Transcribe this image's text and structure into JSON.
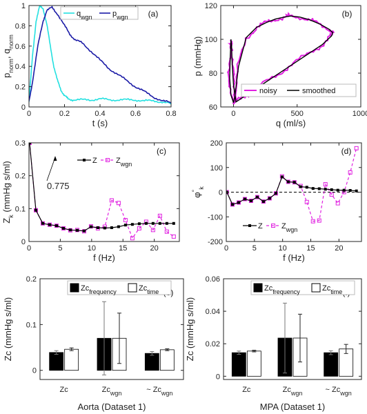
{
  "figure": {
    "a": {
      "label": "(a)",
      "ylabel": {
        "main1": "p",
        "sub1": "norm",
        "sep": ", q",
        "sub2": "norm"
      },
      "xlabel": "t (s)",
      "xticks": [
        "0",
        "0.2",
        "0.4",
        "0.6",
        "0.8"
      ],
      "yticks": [
        "0",
        "0.2",
        "0.4",
        "0.6",
        "0.8",
        "1"
      ],
      "legend": [
        {
          "main": "q",
          "sub": "wgn"
        },
        {
          "main": "p",
          "sub": "wgn"
        }
      ]
    },
    "b": {
      "label": "(b)",
      "ylabel": "p (mmHg)",
      "xlabel": "q (ml/s)",
      "xticks": [
        "0",
        "500",
        "1000"
      ],
      "yticks": [
        "60",
        "80",
        "100",
        "120"
      ],
      "legend": [
        "noisy",
        "smoothed"
      ]
    },
    "c": {
      "label": "(c)",
      "ylabel": {
        "main": "Z",
        "sub": "k",
        "rest": " (mmHg s/ml)"
      },
      "xlabel": "f (Hz)",
      "xticks": [
        "0",
        "5",
        "10",
        "15",
        "20"
      ],
      "yticks": [
        "0",
        "0.1",
        "0.2",
        "0.3"
      ],
      "legend": [
        {
          "main": "Z",
          "sub": ""
        },
        {
          "main": "Z",
          "sub": "wgn"
        }
      ],
      "annotation": "0.775"
    },
    "d": {
      "label": "(d)",
      "ylabel": {
        "main": "φ",
        "sub": "k",
        "sup": "°"
      },
      "xlabel": "f (Hz)",
      "xticks": [
        "0",
        "5",
        "10",
        "15",
        "20"
      ],
      "yticks": [
        "-200",
        "-100",
        "0",
        "100",
        "200"
      ],
      "legend": [
        {
          "main": "Z",
          "sub": ""
        },
        {
          "main": "Z",
          "sub": "wgn"
        }
      ]
    },
    "e": {
      "label": "(e)",
      "ylabel": "Zc (mmHg s/ml)",
      "xlabel": "Aorta (Dataset 1)",
      "yticks": [
        "0",
        "0.1",
        "0.2"
      ],
      "categories": [
        {
          "pre": "",
          "main": "Zc",
          "sub": ""
        },
        {
          "pre": "",
          "main": "Zc",
          "sub": "wgn"
        },
        {
          "pre": "~ ",
          "main": "Zc",
          "sub": "wgn"
        }
      ],
      "legend": [
        {
          "main": "Zc",
          "sub": "frequency"
        },
        {
          "main": "Zc",
          "sub": "time"
        }
      ]
    },
    "f": {
      "label": "(f)",
      "ylabel": "Zc (mmHg s/ml)",
      "xlabel": "MPA (Dataset 1)",
      "yticks": [
        "0",
        "0.02",
        "0.04",
        "0.06"
      ],
      "categories": [
        {
          "pre": "",
          "main": "Zc",
          "sub": ""
        },
        {
          "pre": "",
          "main": "Zc",
          "sub": "wgn"
        },
        {
          "pre": "~ ",
          "main": "Zc",
          "sub": "wgn"
        }
      ],
      "legend": [
        {
          "main": "Zc",
          "sub": "frequency"
        },
        {
          "main": "Zc",
          "sub": "time"
        }
      ]
    }
  },
  "chart_data": [
    {
      "panel": "a",
      "type": "line",
      "xlim": [
        0,
        0.8
      ],
      "ylim": [
        0,
        1
      ],
      "colors": [
        "#22e0e0",
        "#1a1aa6"
      ],
      "series": [
        {
          "name": "q_wgn",
          "x": [
            0,
            0.02,
            0.04,
            0.06,
            0.08,
            0.1,
            0.12,
            0.14,
            0.16,
            0.18,
            0.2,
            0.22,
            0.25,
            0.3,
            0.35,
            0.4,
            0.45,
            0.5,
            0.55,
            0.6,
            0.65,
            0.7,
            0.75,
            0.8
          ],
          "y": [
            0.05,
            0.5,
            0.85,
            0.99,
            0.97,
            0.82,
            0.6,
            0.4,
            0.26,
            0.17,
            0.11,
            0.08,
            0.07,
            0.07,
            0.07,
            0.08,
            0.07,
            0.07,
            0.07,
            0.07,
            0.06,
            0.06,
            0.05,
            0.03
          ]
        },
        {
          "name": "p_wgn",
          "x": [
            0,
            0.02,
            0.05,
            0.08,
            0.1,
            0.13,
            0.16,
            0.2,
            0.23,
            0.26,
            0.3,
            0.35,
            0.4,
            0.45,
            0.5,
            0.55,
            0.6,
            0.65,
            0.7,
            0.75,
            0.8
          ],
          "y": [
            0.05,
            0.25,
            0.6,
            0.85,
            0.95,
            0.98,
            0.92,
            0.8,
            0.72,
            0.66,
            0.63,
            0.55,
            0.46,
            0.38,
            0.32,
            0.26,
            0.2,
            0.15,
            0.1,
            0.06,
            0.04
          ]
        }
      ]
    },
    {
      "panel": "b",
      "type": "line",
      "xlim": [
        -100,
        1000
      ],
      "ylim": [
        60,
        120
      ],
      "colors": [
        "#e020e0",
        "#000000"
      ],
      "series": [
        {
          "name": "smoothed",
          "x": [
            0,
            10,
            40,
            100,
            180,
            260,
            330,
            400,
            450,
            520,
            600,
            680,
            750,
            780,
            770,
            700,
            600,
            500,
            400,
            300,
            200,
            120,
            60,
            20,
            0,
            -10,
            -15,
            -20,
            -25,
            -30,
            -20,
            0
          ],
          "y": [
            62.5,
            66,
            84,
            101,
            107,
            110,
            112,
            113.2,
            113.8,
            113.2,
            111.5,
            109,
            106,
            104,
            102,
            97,
            92,
            87,
            82,
            77,
            72,
            68,
            65,
            63,
            73,
            85,
            96,
            100,
            90,
            77,
            67,
            62.5
          ]
        }
      ]
    },
    {
      "panel": "c",
      "type": "line",
      "xlim": [
        0,
        24
      ],
      "ylim": [
        0,
        0.3
      ],
      "colors": [
        "#000000",
        "#e020e0"
      ],
      "series": [
        {
          "name": "Z",
          "x": [
            0.1,
            1.1,
            2.2,
            3.3,
            4.4,
            5.5,
            6.6,
            7.7,
            8.8,
            9.9,
            11,
            12.1,
            13.2,
            14.3,
            15.4,
            16.5,
            17.6,
            18.7,
            19.8,
            20.9,
            22,
            23.1
          ],
          "y": [
            0.3,
            0.095,
            0.055,
            0.051,
            0.048,
            0.04,
            0.035,
            0.034,
            0.032,
            0.045,
            0.042,
            0.041,
            0.042,
            0.045,
            0.05,
            0.052,
            0.054,
            0.055,
            0.055,
            0.055,
            0.055,
            0.055
          ]
        },
        {
          "name": "Z_wgn",
          "x": [
            0.1,
            1.1,
            2.2,
            3.3,
            4.4,
            5.5,
            6.6,
            7.7,
            8.8,
            9.9,
            11,
            12.1,
            13.2,
            14.3,
            15.4,
            16.5,
            17.6,
            18.7,
            19.8,
            20.9,
            22,
            23.1
          ],
          "y": [
            0.3,
            0.095,
            0.055,
            0.051,
            0.048,
            0.04,
            0.034,
            0.035,
            0.031,
            0.046,
            0.04,
            0.045,
            0.125,
            0.117,
            0.065,
            0.01,
            0.04,
            0.06,
            0.035,
            0.078,
            0.03,
            0.015
          ]
        }
      ]
    },
    {
      "panel": "d",
      "type": "line",
      "xlim": [
        0,
        24
      ],
      "ylim": [
        -200,
        200
      ],
      "colors": [
        "#000000",
        "#e020e0"
      ],
      "series": [
        {
          "name": "Z",
          "x": [
            0.1,
            1.1,
            2.2,
            3.3,
            4.4,
            5.5,
            6.6,
            7.7,
            8.8,
            9.9,
            11,
            12.1,
            13.2,
            14.3,
            15.4,
            16.5,
            17.6,
            18.7,
            19.8,
            20.9,
            22,
            23.1
          ],
          "y": [
            0,
            -50,
            -42,
            -28,
            -35,
            -20,
            -38,
            -25,
            -5,
            62,
            42,
            40,
            22,
            20,
            15,
            14,
            12,
            10,
            8,
            8,
            7,
            5
          ]
        },
        {
          "name": "Z_wgn",
          "x": [
            0.1,
            1.1,
            2.2,
            3.3,
            4.4,
            5.5,
            6.6,
            7.7,
            8.8,
            9.9,
            11,
            12.1,
            13.2,
            14.3,
            15.4,
            16.5,
            17.6,
            18.7,
            19.8,
            20.9,
            22,
            23.1
          ],
          "y": [
            0,
            -50,
            -42,
            -28,
            -35,
            -20,
            -38,
            -25,
            -5,
            64,
            42,
            40,
            25,
            -40,
            -118,
            -115,
            32,
            -10,
            -45,
            0,
            80,
            178
          ]
        }
      ]
    },
    {
      "panel": "e",
      "type": "bar",
      "ylim": [
        -0.02,
        0.2
      ],
      "colors": [
        "#000000",
        "#ffffff"
      ],
      "categories": [
        "Zc",
        "Zc_wgn",
        "~Zc_wgn"
      ],
      "series": [
        {
          "name": "Zc_frequency",
          "values": [
            0.039,
            0.07,
            0.037
          ],
          "error": [
            0.004,
            0.08,
            0.004
          ]
        },
        {
          "name": "Zc_time",
          "values": [
            0.046,
            0.07,
            0.045
          ],
          "error": [
            0.003,
            0.055,
            0.002
          ]
        }
      ]
    },
    {
      "panel": "f",
      "type": "bar",
      "ylim": [
        -0.002,
        0.06
      ],
      "colors": [
        "#000000",
        "#ffffff"
      ],
      "categories": [
        "Zc",
        "Zc_wgn",
        "~Zc_wgn"
      ],
      "series": [
        {
          "name": "Zc_frequency",
          "values": [
            0.0145,
            0.0235,
            0.0145
          ],
          "error": [
            0.001,
            0.0215,
            0.0012
          ]
        },
        {
          "name": "Zc_time",
          "values": [
            0.0155,
            0.0235,
            0.0168
          ],
          "error": [
            0.0005,
            0.0147,
            0.0028
          ]
        }
      ]
    }
  ]
}
